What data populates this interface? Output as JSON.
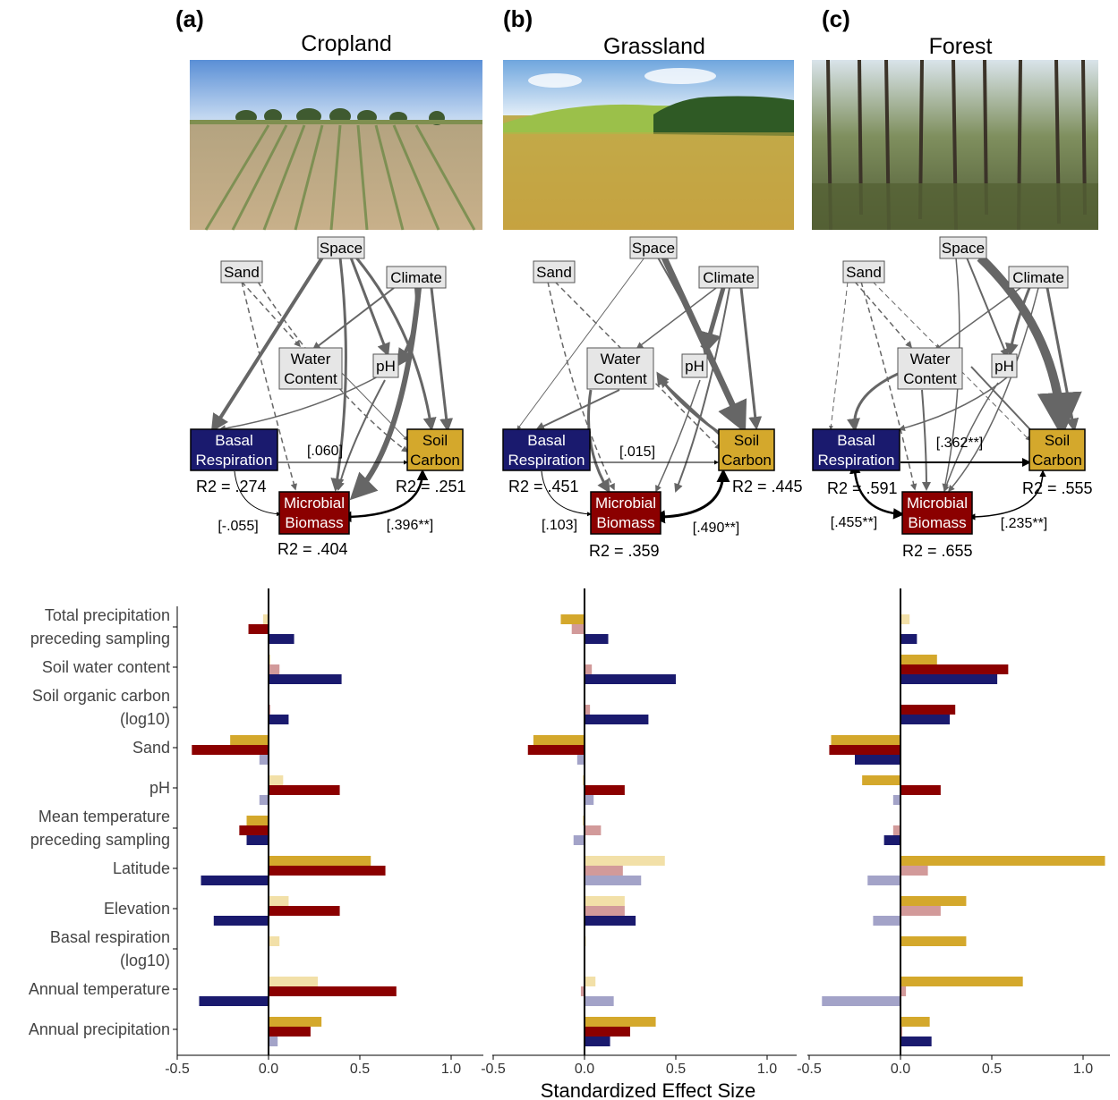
{
  "colors": {
    "soil_carbon": "#d4a82c",
    "soil_carbon_light": "#f2e0a8",
    "microbial_biomass": "#8b0000",
    "microbial_biomass_light": "#d29a9a",
    "basal_respiration": "#1a1a6e",
    "basal_respiration_light": "#a3a3c8",
    "env_node": "#e6e6e6",
    "arrow": "#666666"
  },
  "panels": [
    {
      "label": "(a)",
      "title": "Cropland",
      "photo": "cropland-photo",
      "r2": {
        "basal": "R2 = .274",
        "microbial": "R2 = .404",
        "soil": "R2 = .251"
      },
      "coef": {
        "basal_soil": "[.060]",
        "basal_micro": "[-.055]",
        "micro_soil": "[.396**]"
      }
    },
    {
      "label": "(b)",
      "title": "Grassland",
      "photo": "grassland-photo",
      "r2": {
        "basal": "R2 = .451",
        "microbial": "R2 = .359",
        "soil": "R2 = .445"
      },
      "coef": {
        "basal_soil": "[.015]",
        "basal_micro": "[.103]",
        "micro_soil": "[.490**]"
      }
    },
    {
      "label": "(c)",
      "title": "Forest",
      "photo": "forest-photo",
      "r2": {
        "basal": "R2 = .591",
        "microbial": "R2 = .655",
        "soil": "R2 = .555"
      },
      "coef": {
        "basal_soil": "[.362**]",
        "basal_micro": "[.455**]",
        "micro_soil": "[.235**]"
      }
    }
  ],
  "nodes": {
    "space": "Space",
    "sand": "Sand",
    "climate": "Climate",
    "water": [
      "Water",
      "Content"
    ],
    "ph": "pH",
    "basal": [
      "Basal",
      "Respiration"
    ],
    "soil": [
      "Soil",
      "Carbon"
    ],
    "microbial": [
      "Microbial",
      "Biomass"
    ]
  },
  "chart_data": {
    "type": "bar",
    "orientation": "horizontal",
    "xlabel": "Standardized Effect Size",
    "ylabel": "",
    "xlim": [
      -0.5,
      1.2
    ],
    "xticks": [
      -0.5,
      0.0,
      0.5,
      1.0
    ],
    "xtick_labels": [
      "-0.5",
      "0.0",
      "0.5",
      "1.0"
    ],
    "categories": [
      "Total precipitation preceding sampling",
      "Soil water content",
      "Soil organic carbon (log10)",
      "Sand",
      "pH",
      "Mean temperature preceding sampling",
      "Latitude",
      "Elevation",
      "Basal respiration (log10)",
      "Annual temperature",
      "Annual precipitation"
    ],
    "category_labels": [
      [
        "Total precipitation",
        "preceding sampling"
      ],
      [
        "Soil water content"
      ],
      [
        "Soil organic carbon",
        "(log10)"
      ],
      [
        "Sand"
      ],
      [
        "pH"
      ],
      [
        "Mean temperature",
        "preceding sampling"
      ],
      [
        "Latitude"
      ],
      [
        "Elevation"
      ],
      [
        "Basal respiration",
        "(log10)"
      ],
      [
        "Annual temperature"
      ],
      [
        "Annual precipitation"
      ]
    ],
    "series_order": [
      "soil_carbon",
      "microbial_biomass",
      "basal_respiration"
    ],
    "panels": [
      {
        "name": "Cropland",
        "values": [
          [
            {
              "v": -0.03,
              "s": false
            },
            {
              "v": -0.11,
              "s": true
            },
            {
              "v": 0.14,
              "s": true
            }
          ],
          [
            {
              "v": 0.01,
              "s": false
            },
            {
              "v": 0.06,
              "s": false
            },
            {
              "v": 0.4,
              "s": true
            }
          ],
          [
            null,
            {
              "v": 0.01,
              "s": false
            },
            {
              "v": 0.11,
              "s": true
            }
          ],
          [
            {
              "v": -0.21,
              "s": true
            },
            {
              "v": -0.42,
              "s": true
            },
            {
              "v": -0.05,
              "s": false
            }
          ],
          [
            {
              "v": 0.08,
              "s": false
            },
            {
              "v": 0.39,
              "s": true
            },
            {
              "v": -0.05,
              "s": false
            }
          ],
          [
            {
              "v": -0.12,
              "s": true
            },
            {
              "v": -0.16,
              "s": true
            },
            {
              "v": -0.12,
              "s": true
            }
          ],
          [
            {
              "v": 0.56,
              "s": true
            },
            {
              "v": 0.64,
              "s": true
            },
            {
              "v": -0.37,
              "s": true
            }
          ],
          [
            {
              "v": 0.11,
              "s": false
            },
            {
              "v": 0.39,
              "s": true
            },
            {
              "v": -0.3,
              "s": true
            }
          ],
          [
            {
              "v": 0.06,
              "s": false
            },
            null,
            null
          ],
          [
            {
              "v": 0.27,
              "s": false
            },
            {
              "v": 0.7,
              "s": true
            },
            {
              "v": -0.38,
              "s": true
            }
          ],
          [
            {
              "v": 0.29,
              "s": true
            },
            {
              "v": 0.23,
              "s": true
            },
            {
              "v": 0.05,
              "s": false
            }
          ]
        ]
      },
      {
        "name": "Grassland",
        "values": [
          [
            {
              "v": -0.13,
              "s": true
            },
            {
              "v": -0.07,
              "s": false
            },
            {
              "v": 0.13,
              "s": true
            }
          ],
          [
            null,
            {
              "v": 0.04,
              "s": false
            },
            {
              "v": 0.5,
              "s": true
            }
          ],
          [
            null,
            {
              "v": 0.03,
              "s": false
            },
            {
              "v": 0.35,
              "s": true
            }
          ],
          [
            {
              "v": -0.28,
              "s": true
            },
            {
              "v": -0.31,
              "s": true
            },
            {
              "v": -0.04,
              "s": false
            }
          ],
          [
            {
              "v": -0.01,
              "s": false
            },
            {
              "v": 0.22,
              "s": true
            },
            {
              "v": 0.05,
              "s": false
            }
          ],
          [
            {
              "v": -0.01,
              "s": false
            },
            {
              "v": 0.09,
              "s": false
            },
            {
              "v": -0.06,
              "s": false
            }
          ],
          [
            {
              "v": 0.44,
              "s": false
            },
            {
              "v": 0.21,
              "s": false
            },
            {
              "v": 0.31,
              "s": false
            }
          ],
          [
            {
              "v": 0.22,
              "s": false
            },
            {
              "v": 0.22,
              "s": false
            },
            {
              "v": 0.28,
              "s": true
            }
          ],
          [
            {
              "v": 0.0,
              "s": false
            },
            null,
            null
          ],
          [
            {
              "v": 0.06,
              "s": false
            },
            {
              "v": -0.02,
              "s": false
            },
            {
              "v": 0.16,
              "s": false
            }
          ],
          [
            {
              "v": 0.39,
              "s": true
            },
            {
              "v": 0.25,
              "s": true
            },
            {
              "v": 0.14,
              "s": true
            }
          ]
        ]
      },
      {
        "name": "Forest",
        "values": [
          [
            {
              "v": 0.05,
              "s": false
            },
            null,
            {
              "v": 0.09,
              "s": true
            }
          ],
          [
            {
              "v": 0.2,
              "s": true
            },
            {
              "v": 0.59,
              "s": true
            },
            {
              "v": 0.53,
              "s": true
            }
          ],
          [
            null,
            {
              "v": 0.3,
              "s": true
            },
            {
              "v": 0.27,
              "s": true
            }
          ],
          [
            {
              "v": -0.38,
              "s": true
            },
            {
              "v": -0.39,
              "s": true
            },
            {
              "v": -0.25,
              "s": true
            }
          ],
          [
            {
              "v": -0.21,
              "s": true
            },
            {
              "v": 0.22,
              "s": true
            },
            {
              "v": -0.04,
              "s": false
            }
          ],
          [
            null,
            {
              "v": -0.04,
              "s": false
            },
            {
              "v": -0.09,
              "s": true
            }
          ],
          [
            {
              "v": 1.12,
              "s": true
            },
            {
              "v": 0.15,
              "s": false
            },
            {
              "v": -0.18,
              "s": false
            }
          ],
          [
            {
              "v": 0.36,
              "s": true
            },
            {
              "v": 0.22,
              "s": false
            },
            {
              "v": -0.15,
              "s": false
            }
          ],
          [
            {
              "v": 0.36,
              "s": true
            },
            null,
            null
          ],
          [
            {
              "v": 0.67,
              "s": true
            },
            {
              "v": 0.03,
              "s": false
            },
            {
              "v": -0.43,
              "s": false
            }
          ],
          [
            {
              "v": 0.16,
              "s": true
            },
            {
              "v": 0.01,
              "s": false
            },
            {
              "v": 0.17,
              "s": true
            }
          ]
        ]
      }
    ]
  }
}
